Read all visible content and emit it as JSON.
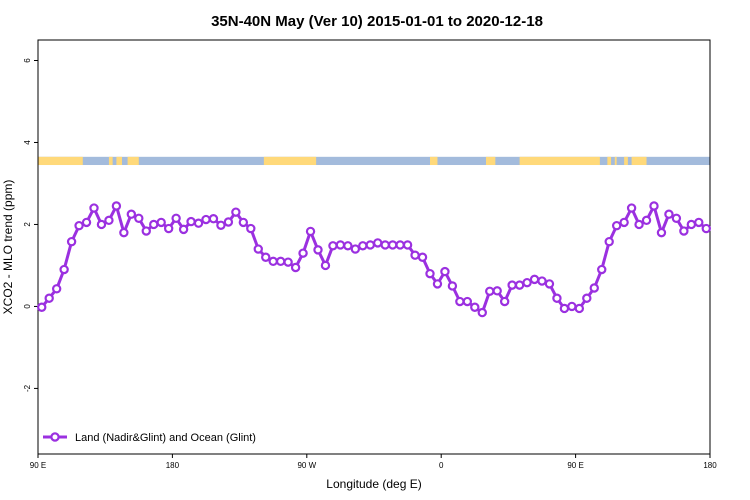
{
  "chart_data": {
    "type": "line",
    "title": "35N-40N May (Ver 10)   2015-01-01 to 2020-12-18",
    "xlabel": "Longitude (deg E)",
    "ylabel": "XCO2 - MLO trend (ppm)",
    "xlim": [
      90,
      450
    ],
    "ylim": [
      -3.6,
      6.5
    ],
    "x_ticks": [
      {
        "value": 90,
        "label": "90 E"
      },
      {
        "value": 162,
        "label": "180"
      },
      {
        "value": 234,
        "label": "90 W"
      },
      {
        "value": 306,
        "label": "0"
      },
      {
        "value": 378,
        "label": "90 E"
      },
      {
        "value": 450,
        "label": "180"
      }
    ],
    "y_ticks": [
      {
        "value": -2,
        "label": "-2"
      },
      {
        "value": 0,
        "label": "0"
      },
      {
        "value": 2,
        "label": "2"
      },
      {
        "value": 4,
        "label": "4"
      },
      {
        "value": 6,
        "label": "6"
      }
    ],
    "legend": {
      "position": "bottom-left"
    },
    "series": [
      {
        "name": "Land (Nadir&Glint) and Ocean (Glint)",
        "color": "#9b30e0",
        "x": [
          92,
          96,
          100,
          104,
          108,
          112,
          116,
          120,
          124,
          128,
          132,
          136,
          140,
          144,
          148,
          152,
          156,
          160,
          164,
          168,
          172,
          176,
          180,
          184,
          188,
          192,
          196,
          200,
          204,
          208,
          212,
          216,
          220,
          224,
          228,
          232,
          236,
          240,
          244,
          248,
          252,
          256,
          260,
          264,
          268,
          272,
          276,
          280,
          284,
          288,
          292,
          296,
          300,
          304,
          308,
          312,
          316,
          320,
          324,
          328,
          332,
          336,
          340,
          344,
          348,
          352,
          356,
          360,
          364,
          368,
          372,
          376,
          380,
          384,
          388,
          392,
          396,
          400,
          404,
          408,
          412,
          416,
          420,
          424,
          428,
          432,
          436,
          440,
          444,
          448
        ],
        "y": [
          -0.02,
          0.2,
          0.43,
          0.9,
          1.58,
          1.97,
          2.05,
          2.4,
          2.0,
          2.1,
          2.45,
          1.8,
          2.25,
          2.15,
          1.84,
          2.0,
          2.05,
          1.9,
          2.15,
          1.88,
          2.07,
          2.03,
          2.12,
          2.14,
          1.98,
          2.06,
          2.3,
          2.05,
          1.9,
          1.4,
          1.2,
          1.1,
          1.1,
          1.08,
          0.95,
          1.3,
          1.83,
          1.38,
          1.0,
          1.48,
          1.5,
          1.48,
          1.4,
          1.48,
          1.5,
          1.55,
          1.5,
          1.5,
          1.5,
          1.5,
          1.25,
          1.2,
          0.8,
          0.55,
          0.85,
          0.5,
          0.12,
          0.12,
          -0.02,
          -0.15,
          0.37,
          0.38,
          0.12,
          0.52,
          0.52,
          0.58,
          0.66,
          0.62,
          0.55,
          0.2,
          -0.05,
          0.0,
          -0.05,
          0.2,
          0.45,
          0.9,
          1.58,
          1.97,
          2.05,
          2.4,
          2.0,
          2.1,
          2.45,
          1.8,
          2.25,
          2.15,
          1.84,
          2.0,
          2.05,
          1.9
        ]
      }
    ],
    "surface_band": {
      "y_range": [
        3.45,
        3.65
      ],
      "land_color": "#ffd97a",
      "ocean_color": "#a3bbdc",
      "land_segments": [
        [
          90,
          114
        ],
        [
          128,
          130
        ],
        [
          132,
          135
        ],
        [
          138,
          144
        ],
        [
          211,
          239
        ],
        [
          300,
          304
        ],
        [
          330,
          335
        ],
        [
          348,
          391
        ],
        [
          395,
          397
        ],
        [
          399,
          400
        ],
        [
          404,
          406
        ],
        [
          408,
          416
        ]
      ]
    }
  }
}
